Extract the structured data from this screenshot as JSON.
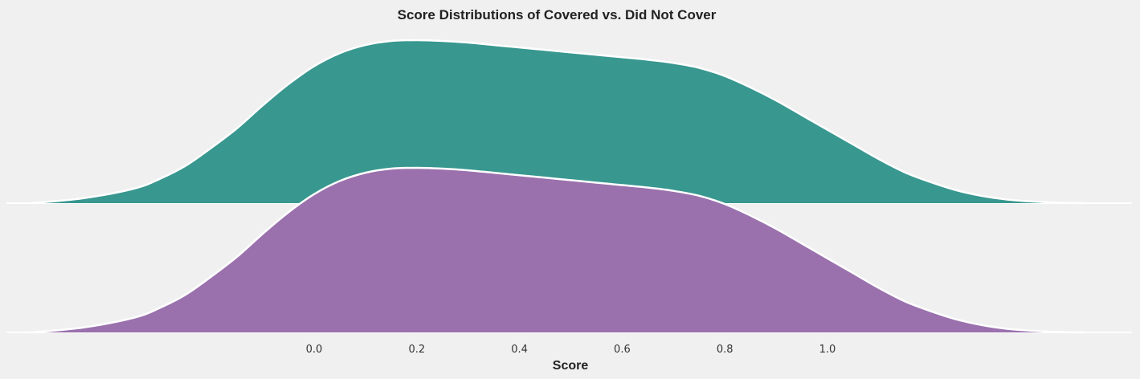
{
  "chart_data": {
    "type": "area",
    "title": "Score Distributions of Covered vs. Did Not Cover",
    "xlabel": "Score",
    "ylabel": "",
    "x_ticks": [
      0.0,
      0.2,
      0.4,
      0.6,
      0.8,
      1.0
    ],
    "x_tick_labels": [
      "0.0",
      "0.2",
      "0.4",
      "0.6",
      "0.8",
      "1.0"
    ],
    "xlim": [
      -0.6,
      1.55
    ],
    "grid": false,
    "legend": "none",
    "x": [
      -0.55,
      -0.45,
      -0.35,
      -0.3,
      -0.25,
      -0.2,
      -0.15,
      -0.1,
      -0.05,
      0.0,
      0.05,
      0.1,
      0.15,
      0.2,
      0.25,
      0.3,
      0.35,
      0.4,
      0.45,
      0.5,
      0.55,
      0.6,
      0.65,
      0.7,
      0.75,
      0.8,
      0.85,
      0.9,
      0.95,
      1.0,
      1.05,
      1.1,
      1.15,
      1.2,
      1.25,
      1.3,
      1.35,
      1.4,
      1.45,
      1.5
    ],
    "series": [
      {
        "name": "",
        "color": "#38978f",
        "values": [
          0.0,
          0.03,
          0.09,
          0.15,
          0.23,
          0.34,
          0.46,
          0.6,
          0.73,
          0.84,
          0.92,
          0.97,
          0.995,
          1.0,
          0.995,
          0.985,
          0.97,
          0.955,
          0.94,
          0.925,
          0.91,
          0.895,
          0.88,
          0.86,
          0.83,
          0.78,
          0.71,
          0.63,
          0.54,
          0.45,
          0.36,
          0.27,
          0.19,
          0.13,
          0.08,
          0.045,
          0.022,
          0.01,
          0.003,
          0.0
        ]
      },
      {
        "name": "",
        "color": "#9a71ad",
        "values": [
          0.0,
          0.03,
          0.09,
          0.15,
          0.23,
          0.34,
          0.46,
          0.6,
          0.73,
          0.84,
          0.92,
          0.97,
          0.995,
          1.0,
          0.995,
          0.985,
          0.97,
          0.955,
          0.94,
          0.925,
          0.91,
          0.895,
          0.88,
          0.86,
          0.83,
          0.78,
          0.71,
          0.63,
          0.54,
          0.45,
          0.36,
          0.27,
          0.19,
          0.13,
          0.08,
          0.045,
          0.022,
          0.01,
          0.003,
          0.0
        ]
      }
    ]
  }
}
